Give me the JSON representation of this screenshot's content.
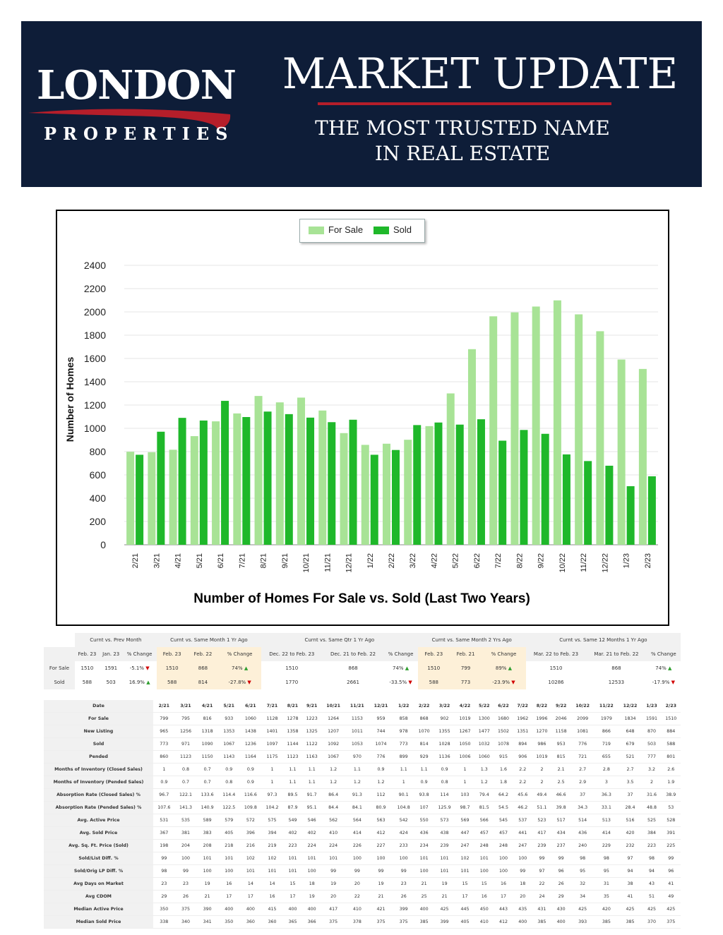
{
  "header": {
    "logo_main": "LONDON",
    "logo_sub": "PROPERTIES",
    "title": "MARKET UPDATE",
    "subtitle_line1": "THE MOST TRUSTED NAME",
    "subtitle_line2": "IN REAL ESTATE"
  },
  "colors": {
    "banner": "#0e1d38",
    "accent_red": "#b51e2a",
    "for_sale": "#a8e396",
    "sold": "#1fb82a"
  },
  "chart_data": {
    "type": "bar",
    "title": "Number of Homes For Sale vs. Sold (Last Two Years)",
    "ylabel": "Number of Homes",
    "xlabel": "",
    "ylim": [
      0,
      2400
    ],
    "yticks": [
      0,
      200,
      400,
      600,
      800,
      1000,
      1200,
      1400,
      1600,
      1800,
      2000,
      2200,
      2400
    ],
    "legend_position": "top-center",
    "categories": [
      "2/21",
      "3/21",
      "4/21",
      "5/21",
      "6/21",
      "7/21",
      "8/21",
      "9/21",
      "10/21",
      "11/21",
      "12/21",
      "1/22",
      "2/22",
      "3/22",
      "4/22",
      "5/22",
      "6/22",
      "7/22",
      "8/22",
      "9/22",
      "10/22",
      "11/22",
      "12/22",
      "1/23",
      "2/23"
    ],
    "series": [
      {
        "name": "For Sale",
        "values": [
          799,
          795,
          816,
          933,
          1060,
          1128,
          1278,
          1223,
          1264,
          1153,
          959,
          858,
          868,
          902,
          1019,
          1300,
          1680,
          1962,
          1996,
          2046,
          2099,
          1979,
          1834,
          1591,
          1510
        ]
      },
      {
        "name": "Sold",
        "values": [
          773,
          971,
          1090,
          1067,
          1236,
          1097,
          1144,
          1122,
          1092,
          1053,
          1074,
          773,
          814,
          1028,
          1050,
          1032,
          1078,
          894,
          986,
          953,
          776,
          719,
          679,
          503,
          588
        ]
      }
    ]
  },
  "summary": {
    "groups": [
      "Curnt vs. Prev Month",
      "Curnt vs. Same Month 1 Yr Ago",
      "Curnt vs. Same Qtr 1 Yr Ago",
      "Curnt vs. Same Month 2 Yrs Ago",
      "Curnt vs. Same 12 Months 1 Yr Ago"
    ],
    "subheaders": [
      "Feb. 23",
      "Jan. 23",
      "% Change",
      "Feb. 23",
      "Feb. 22",
      "% Change",
      "Dec. 22 to Feb. 23",
      "Dec. 21 to Feb. 22",
      "% Change",
      "Feb. 23",
      "Feb. 21",
      "% Change",
      "Mar. 22 to Feb. 23",
      "Mar. 21 to Feb. 22",
      "% Change"
    ],
    "rows": [
      {
        "label": "For Sale",
        "cells": [
          "1510",
          "1591",
          "-5.1%",
          "1510",
          "868",
          "74%",
          "1510",
          "868",
          "74%",
          "1510",
          "799",
          "89%",
          "1510",
          "868",
          "74%"
        ],
        "dirs": [
          "dn",
          "up",
          "up",
          "up",
          "up"
        ]
      },
      {
        "label": "Sold",
        "cells": [
          "588",
          "503",
          "16.9%",
          "588",
          "814",
          "-27.8%",
          "1770",
          "2661",
          "-33.5%",
          "588",
          "773",
          "-23.9%",
          "10286",
          "12533",
          "-17.9%"
        ],
        "dirs": [
          "up",
          "dn",
          "dn",
          "dn",
          "dn"
        ]
      }
    ]
  },
  "detail": {
    "header_label": "Date",
    "months": [
      "2/21",
      "3/21",
      "4/21",
      "5/21",
      "6/21",
      "7/21",
      "8/21",
      "9/21",
      "10/21",
      "11/21",
      "12/21",
      "1/22",
      "2/22",
      "3/22",
      "4/22",
      "5/22",
      "6/22",
      "7/22",
      "8/22",
      "9/22",
      "10/22",
      "11/22",
      "12/22",
      "1/23",
      "2/23"
    ],
    "rows": [
      {
        "label": "For Sale",
        "values": [
          "799",
          "795",
          "816",
          "933",
          "1060",
          "1128",
          "1278",
          "1223",
          "1264",
          "1153",
          "959",
          "858",
          "868",
          "902",
          "1019",
          "1300",
          "1680",
          "1962",
          "1996",
          "2046",
          "2099",
          "1979",
          "1834",
          "1591",
          "1510"
        ]
      },
      {
        "label": "New Listing",
        "values": [
          "965",
          "1256",
          "1318",
          "1353",
          "1438",
          "1401",
          "1358",
          "1325",
          "1207",
          "1011",
          "744",
          "978",
          "1070",
          "1355",
          "1267",
          "1477",
          "1502",
          "1351",
          "1270",
          "1158",
          "1081",
          "866",
          "648",
          "870",
          "884"
        ]
      },
      {
        "label": "Sold",
        "values": [
          "773",
          "971",
          "1090",
          "1067",
          "1236",
          "1097",
          "1144",
          "1122",
          "1092",
          "1053",
          "1074",
          "773",
          "814",
          "1028",
          "1050",
          "1032",
          "1078",
          "894",
          "986",
          "953",
          "776",
          "719",
          "679",
          "503",
          "588"
        ]
      },
      {
        "label": "Pended",
        "values": [
          "860",
          "1123",
          "1150",
          "1143",
          "1164",
          "1175",
          "1123",
          "1163",
          "1067",
          "970",
          "776",
          "899",
          "929",
          "1136",
          "1006",
          "1060",
          "915",
          "906",
          "1019",
          "815",
          "721",
          "655",
          "521",
          "777",
          "801"
        ]
      },
      {
        "label": "Months of Inventory (Closed Sales)",
        "values": [
          "1",
          "0.8",
          "0.7",
          "0.9",
          "0.9",
          "1",
          "1.1",
          "1.1",
          "1.2",
          "1.1",
          "0.9",
          "1.1",
          "1.1",
          "0.9",
          "1",
          "1.3",
          "1.6",
          "2.2",
          "2",
          "2.1",
          "2.7",
          "2.8",
          "2.7",
          "3.2",
          "2.6"
        ]
      },
      {
        "label": "Months of Inventory (Pended Sales)",
        "values": [
          "0.9",
          "0.7",
          "0.7",
          "0.8",
          "0.9",
          "1",
          "1.1",
          "1.1",
          "1.2",
          "1.2",
          "1.2",
          "1",
          "0.9",
          "0.8",
          "1",
          "1.2",
          "1.8",
          "2.2",
          "2",
          "2.5",
          "2.9",
          "3",
          "3.5",
          "2",
          "1.9"
        ]
      },
      {
        "label": "Absorption Rate (Closed Sales) %",
        "values": [
          "96.7",
          "122.1",
          "133.6",
          "114.4",
          "116.6",
          "97.3",
          "89.5",
          "91.7",
          "86.4",
          "91.3",
          "112",
          "90.1",
          "93.8",
          "114",
          "103",
          "79.4",
          "64.2",
          "45.6",
          "49.4",
          "46.6",
          "37",
          "36.3",
          "37",
          "31.6",
          "38.9"
        ]
      },
      {
        "label": "Absorption Rate (Pended Sales) %",
        "values": [
          "107.6",
          "141.3",
          "140.9",
          "122.5",
          "109.8",
          "104.2",
          "87.9",
          "95.1",
          "84.4",
          "84.1",
          "80.9",
          "104.8",
          "107",
          "125.9",
          "98.7",
          "81.5",
          "54.5",
          "46.2",
          "51.1",
          "39.8",
          "34.3",
          "33.1",
          "28.4",
          "48.8",
          "53"
        ]
      },
      {
        "label": "Avg. Active Price",
        "values": [
          "531",
          "535",
          "589",
          "579",
          "572",
          "575",
          "549",
          "546",
          "562",
          "564",
          "563",
          "542",
          "550",
          "573",
          "569",
          "566",
          "545",
          "537",
          "523",
          "517",
          "514",
          "513",
          "516",
          "525",
          "528"
        ]
      },
      {
        "label": "Avg. Sold Price",
        "values": [
          "367",
          "381",
          "383",
          "405",
          "396",
          "394",
          "402",
          "402",
          "410",
          "414",
          "412",
          "424",
          "436",
          "438",
          "447",
          "457",
          "457",
          "441",
          "417",
          "434",
          "436",
          "414",
          "420",
          "384",
          "391"
        ]
      },
      {
        "label": "Avg. Sq. Ft. Price (Sold)",
        "values": [
          "198",
          "204",
          "208",
          "218",
          "216",
          "219",
          "223",
          "224",
          "224",
          "226",
          "227",
          "233",
          "234",
          "239",
          "247",
          "248",
          "248",
          "247",
          "239",
          "237",
          "240",
          "229",
          "232",
          "223",
          "225"
        ]
      },
      {
        "label": "Sold/List Diff. %",
        "values": [
          "99",
          "100",
          "101",
          "101",
          "102",
          "102",
          "101",
          "101",
          "101",
          "100",
          "100",
          "100",
          "101",
          "101",
          "102",
          "101",
          "100",
          "100",
          "99",
          "99",
          "98",
          "98",
          "97",
          "98",
          "99"
        ]
      },
      {
        "label": "Sold/Orig LP Diff. %",
        "values": [
          "98",
          "99",
          "100",
          "100",
          "101",
          "101",
          "101",
          "100",
          "99",
          "99",
          "99",
          "99",
          "100",
          "101",
          "101",
          "100",
          "100",
          "99",
          "97",
          "96",
          "95",
          "95",
          "94",
          "94",
          "96"
        ]
      },
      {
        "label": "Avg Days on Market",
        "values": [
          "23",
          "23",
          "19",
          "16",
          "14",
          "14",
          "15",
          "18",
          "19",
          "20",
          "19",
          "23",
          "21",
          "19",
          "15",
          "15",
          "16",
          "18",
          "22",
          "26",
          "32",
          "31",
          "38",
          "43",
          "41"
        ]
      },
      {
        "label": "Avg CDOM",
        "values": [
          "29",
          "26",
          "21",
          "17",
          "17",
          "16",
          "17",
          "19",
          "20",
          "22",
          "21",
          "26",
          "25",
          "21",
          "17",
          "16",
          "17",
          "20",
          "24",
          "29",
          "34",
          "35",
          "41",
          "51",
          "49"
        ]
      },
      {
        "label": "Median Active Price",
        "values": [
          "350",
          "375",
          "390",
          "400",
          "400",
          "415",
          "400",
          "400",
          "417",
          "410",
          "421",
          "399",
          "400",
          "425",
          "445",
          "450",
          "443",
          "435",
          "431",
          "430",
          "425",
          "420",
          "425",
          "425",
          "425"
        ]
      },
      {
        "label": "Median Sold Price",
        "values": [
          "338",
          "340",
          "341",
          "350",
          "360",
          "360",
          "365",
          "366",
          "375",
          "378",
          "375",
          "375",
          "385",
          "399",
          "405",
          "410",
          "412",
          "400",
          "385",
          "400",
          "393",
          "385",
          "385",
          "370",
          "375"
        ]
      }
    ]
  }
}
